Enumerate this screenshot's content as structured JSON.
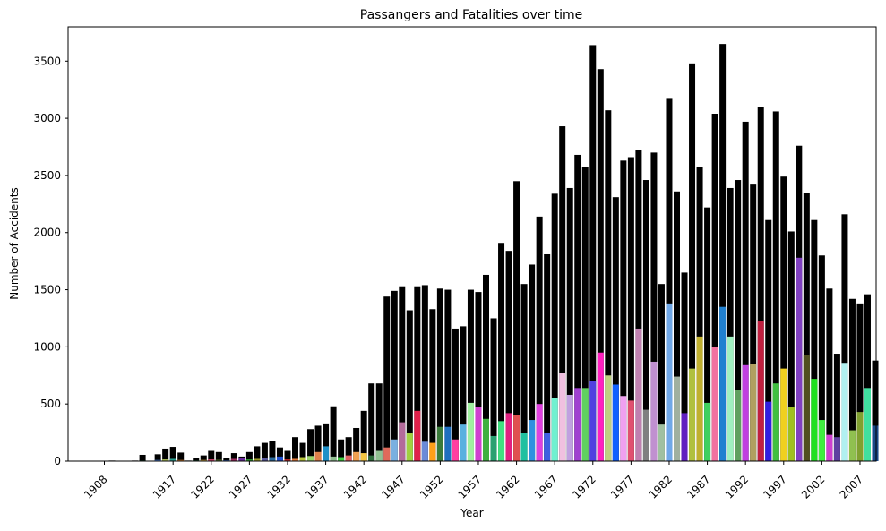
{
  "chart_data": {
    "type": "bar",
    "title": "Passangers and Fatalities over time",
    "xlabel": "Year",
    "ylabel": "Number of Accidents",
    "ylim": [
      0,
      3800
    ],
    "yticks": [
      0,
      500,
      1000,
      1500,
      2000,
      2500,
      3000,
      3500
    ],
    "xtick_labels": [
      "1908",
      "1917",
      "1922",
      "1927",
      "1932",
      "1937",
      "1942",
      "1947",
      "1952",
      "1957",
      "1962",
      "1967",
      "1972",
      "1977",
      "1982",
      "1987",
      "1992",
      "1997",
      "2002",
      "2007"
    ],
    "categories": [
      1908,
      1909,
      1912,
      1913,
      1915,
      1916,
      1917,
      1918,
      1919,
      1920,
      1921,
      1922,
      1923,
      1924,
      1925,
      1926,
      1927,
      1928,
      1929,
      1930,
      1931,
      1932,
      1933,
      1934,
      1935,
      1936,
      1937,
      1938,
      1939,
      1940,
      1941,
      1942,
      1943,
      1944,
      1945,
      1946,
      1947,
      1948,
      1949,
      1950,
      1951,
      1952,
      1953,
      1954,
      1955,
      1956,
      1957,
      1958,
      1959,
      1960,
      1961,
      1962,
      1963,
      1964,
      1965,
      1966,
      1967,
      1968,
      1969,
      1970,
      1971,
      1972,
      1973,
      1974,
      1975,
      1976,
      1977,
      1978,
      1979,
      1980,
      1981,
      1982,
      1983,
      1984,
      1985,
      1986,
      1987,
      1988,
      1989,
      1990,
      1991,
      1992,
      1993,
      1994,
      1995,
      1996,
      1997,
      1998,
      1999,
      2000,
      2001,
      2002,
      2003,
      2004,
      2005,
      2006,
      2007,
      2008,
      2009
    ],
    "grid": false,
    "legend": "none",
    "series": [
      {
        "color": "#000000",
        "values": [
          2,
          5,
          5,
          55,
          60,
          110,
          125,
          75,
          5,
          30,
          50,
          90,
          80,
          30,
          70,
          40,
          80,
          130,
          160,
          180,
          120,
          90,
          210,
          160,
          280,
          310,
          330,
          480,
          190,
          210,
          290,
          440,
          680,
          680,
          1440,
          1490,
          1530,
          1320,
          1530,
          1540,
          1330,
          1510,
          1500,
          1160,
          1180,
          1500,
          1480,
          1630,
          1250,
          1910,
          1840,
          2450,
          1550,
          1720,
          2140,
          1810,
          2340,
          2930,
          2390,
          2680,
          2570,
          3640,
          3430,
          3070,
          2310,
          2630,
          2660,
          2720,
          2460,
          2700,
          1550,
          3170,
          2360,
          1650,
          3480,
          2570,
          2220,
          3040,
          3650,
          2390,
          2460,
          2970,
          2420,
          3100,
          2110,
          3060,
          2490,
          2010,
          2760,
          2350,
          2110,
          1800,
          1510,
          940,
          2160,
          1420,
          1380,
          1460,
          880
        ]
      },
      {
        "values": [
          2,
          3,
          4,
          5,
          10,
          15,
          20,
          10,
          3,
          5,
          10,
          15,
          12,
          8,
          20,
          30,
          15,
          20,
          25,
          35,
          40,
          15,
          20,
          35,
          45,
          80,
          130,
          40,
          35,
          50,
          80,
          70,
          50,
          90,
          120,
          190,
          340,
          250,
          440,
          170,
          160,
          300,
          300,
          190,
          320,
          510,
          470,
          370,
          220,
          350,
          420,
          400,
          250,
          360,
          500,
          250,
          550,
          770,
          580,
          640,
          640,
          700,
          950,
          750,
          670,
          570,
          530,
          1160,
          450,
          870,
          320,
          1380,
          740,
          420,
          810,
          1090,
          510,
          1000,
          1350,
          1090,
          620,
          840,
          850,
          1230,
          520,
          680,
          810,
          470,
          1780,
          930,
          720,
          360,
          230,
          210,
          860,
          270,
          430,
          640,
          310
        ],
        "colors": [
          "#7a7a2a",
          "#6b4fa0",
          "#c25f9b",
          "#2f7d52",
          "#4a7bd1",
          "#b1c45a",
          "#2a9d8f",
          "#d07a2a",
          "#8a3fbf",
          "#3fbf6a",
          "#c9a23f",
          "#d0436e",
          "#4f6b2a",
          "#2a4f9d",
          "#9b2a5f",
          "#6a2a9d",
          "#2a9d2a",
          "#9d9d2a",
          "#5a5a9d",
          "#2a6a9d",
          "#1f4fd0",
          "#c22a2a",
          "#e07a3a",
          "#b8c43a",
          "#9ad26a",
          "#e0804a",
          "#1e90c8",
          "#8fbc8f",
          "#3ecf3e",
          "#e06060",
          "#f0a050",
          "#f4c542",
          "#2e6b3a",
          "#90c090",
          "#e06a5a",
          "#7ab0e0",
          "#b36a9a",
          "#a0d040",
          "#e0204a",
          "#6a8ad8",
          "#ff9f1a",
          "#3a7a3a",
          "#1f6fbf",
          "#ff3fa0",
          "#5ab0e0",
          "#a0f0a0",
          "#d040d0",
          "#40b040",
          "#2aa070",
          "#40e080",
          "#e02080",
          "#e05050",
          "#20c0a0",
          "#3090e0",
          "#e040e0",
          "#4060e0",
          "#70f0d0",
          "#f0c0e0",
          "#c0a0e0",
          "#a040d0",
          "#60d060",
          "#5040e0",
          "#ff20c0",
          "#c0d080",
          "#1060ff",
          "#f0a0f0",
          "#e05070",
          "#c080b0",
          "#808080",
          "#c090d0",
          "#a0c0a0",
          "#70a8e8",
          "#a0b0a0",
          "#6020c0",
          "#b0c040",
          "#c0b030",
          "#40d060",
          "#f070a0",
          "#2080d0",
          "#a0f0c0",
          "#60a060",
          "#c040e0",
          "#b0a060",
          "#c02040",
          "#3020e0",
          "#40c040",
          "#f0d020",
          "#a0c020",
          "#8040c0",
          "#505020",
          "#20e020",
          "#40f040",
          "#d040d0",
          "#6040a0",
          "#b0f0f0",
          "#90c050",
          "#80a030",
          "#40e0a0",
          "#1a4a8a"
        ]
      }
    ]
  }
}
